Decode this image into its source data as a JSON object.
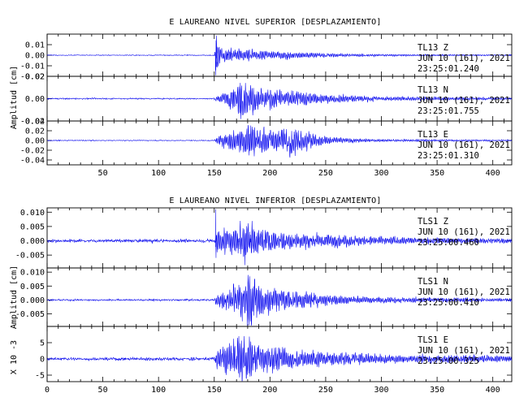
{
  "chart_data": [
    {
      "type": "line",
      "title": "E LAUREANO NIVEL SUPERIOR [DESPLAZAMIENTO]",
      "ylabel": "Amplitud [cm]",
      "xlim": [
        0,
        417
      ],
      "xticks": [
        50,
        100,
        150,
        200,
        250,
        300,
        350,
        400
      ],
      "xticks_labeled": true,
      "line_color": "#0000ee",
      "series": [
        {
          "name": "TL13 Z",
          "station": "TL13",
          "component": "Z",
          "date": "JUN 10 (161), 2021",
          "time": "23:25:01.240",
          "ylim": [
            -0.02,
            0.02
          ],
          "yticks": [
            0.01,
            0.0,
            -0.01,
            -0.02
          ],
          "ytick_labels": [
            "0.01",
            "0.00",
            "-0.01",
            "-0.02"
          ],
          "onset_s": 151,
          "envelope": [
            [
              0,
              0.0006
            ],
            [
              150,
              0.0007
            ],
            [
              151,
              0.018
            ],
            [
              156,
              0.007
            ],
            [
              175,
              0.0055
            ],
            [
              205,
              0.0042
            ],
            [
              230,
              0.003
            ],
            [
              260,
              0.0017
            ],
            [
              300,
              0.001
            ],
            [
              417,
              0.0006
            ]
          ],
          "spikes": [
            [
              151.2,
              -0.019
            ],
            [
              151.6,
              0.014
            ],
            [
              152.1,
              -0.011
            ],
            [
              152.8,
              0.008
            ]
          ]
        },
        {
          "name": "TL13 N",
          "station": "TL13",
          "component": "N",
          "date": "JUN 10 (161), 2021",
          "time": "23:25:01.755",
          "ylim": [
            -0.02,
            0.02
          ],
          "yticks": [
            0.02,
            0.0,
            -0.02
          ],
          "ytick_labels": [
            "0.02",
            "0.00",
            "-0.02"
          ],
          "onset_s": 151,
          "envelope": [
            [
              0,
              0.001
            ],
            [
              150,
              0.001
            ],
            [
              151,
              0.002
            ],
            [
              160,
              0.007
            ],
            [
              175,
              0.016
            ],
            [
              185,
              0.012
            ],
            [
              200,
              0.01
            ],
            [
              225,
              0.007
            ],
            [
              250,
              0.004
            ],
            [
              300,
              0.002
            ],
            [
              417,
              0.001
            ]
          ],
          "spikes": []
        },
        {
          "name": "TL13 E",
          "station": "TL13",
          "component": "E",
          "date": "JUN 10 (161), 2021",
          "time": "23:25:01.310",
          "ylim": [
            -0.05,
            0.04
          ],
          "yticks": [
            0.04,
            0.02,
            0.0,
            -0.02,
            -0.04
          ],
          "ytick_labels": [
            "0.04",
            "0.02",
            "0.00",
            "-0.02",
            "-0.04"
          ],
          "onset_s": 151,
          "envelope": [
            [
              0,
              0.0015
            ],
            [
              150,
              0.0015
            ],
            [
              151,
              0.006
            ],
            [
              165,
              0.02
            ],
            [
              180,
              0.038
            ],
            [
              195,
              0.028
            ],
            [
              205,
              0.02
            ],
            [
              218,
              0.036
            ],
            [
              235,
              0.018
            ],
            [
              255,
              0.007
            ],
            [
              290,
              0.003
            ],
            [
              417,
              0.0015
            ]
          ],
          "spikes": []
        }
      ]
    },
    {
      "type": "line",
      "title": "E LAUREANO NIVEL INFERIOR [DESPLAZAMIENTO]",
      "ylabel": "Amplitud [cm]",
      "xlim": [
        0,
        417
      ],
      "xticks": [
        0,
        50,
        100,
        150,
        200,
        250,
        300,
        350,
        400
      ],
      "xticks_labeled": true,
      "line_color": "#0000ee",
      "series": [
        {
          "name": "TLS1 Z",
          "station": "TLS1",
          "component": "Z",
          "date": "JUN 10 (161), 2021",
          "time": "23:25:00.460",
          "ylim": [
            -0.0095,
            0.0115
          ],
          "yticks": [
            0.01,
            0.005,
            0.0,
            -0.005
          ],
          "ytick_labels": [
            "0.010",
            "0.005",
            "0.000",
            "-0.005"
          ],
          "onset_s": 151,
          "envelope": [
            [
              0,
              0.0008
            ],
            [
              150,
              0.0009
            ],
            [
              151,
              0.004
            ],
            [
              165,
              0.005
            ],
            [
              178,
              0.0065
            ],
            [
              200,
              0.004
            ],
            [
              230,
              0.0028
            ],
            [
              270,
              0.0018
            ],
            [
              330,
              0.0012
            ],
            [
              417,
              0.0008
            ]
          ],
          "spikes": [
            [
              151.2,
              0.011
            ],
            [
              151.6,
              -0.006
            ],
            [
              177.5,
              -0.0085
            ]
          ]
        },
        {
          "name": "TLS1 N",
          "station": "TLS1",
          "component": "N",
          "date": "JUN 10 (161), 2021",
          "time": "23:25:00.410",
          "ylim": [
            -0.0095,
            0.0115
          ],
          "yticks": [
            0.01,
            0.005,
            0.0,
            -0.005
          ],
          "ytick_labels": [
            "0.010",
            "0.005",
            "0.000",
            "-0.005"
          ],
          "onset_s": 151,
          "envelope": [
            [
              0,
              0.0005
            ],
            [
              150,
              0.0006
            ],
            [
              151,
              0.002
            ],
            [
              160,
              0.004
            ],
            [
              172,
              0.0065
            ],
            [
              180,
              0.009
            ],
            [
              195,
              0.0055
            ],
            [
              215,
              0.004
            ],
            [
              240,
              0.0025
            ],
            [
              280,
              0.0012
            ],
            [
              417,
              0.0006
            ]
          ],
          "spikes": []
        },
        {
          "name": "TLS1 E",
          "station": "TLS1",
          "component": "E",
          "date": "JUN 10 (161), 2021",
          "time": "23:25:00.325",
          "scale_label": "X 10 -3",
          "ylim": [
            -7,
            10
          ],
          "yticks": [
            5,
            0,
            -5
          ],
          "ytick_labels": [
            "5",
            "0",
            "-5"
          ],
          "onset_s": 151,
          "envelope": [
            [
              0,
              0.7
            ],
            [
              150,
              0.8
            ],
            [
              151,
              2.5
            ],
            [
              160,
              4
            ],
            [
              175,
              7.5
            ],
            [
              185,
              6
            ],
            [
              200,
              4.2
            ],
            [
              225,
              3
            ],
            [
              260,
              2
            ],
            [
              320,
              1.3
            ],
            [
              417,
              1
            ]
          ],
          "spikes": []
        }
      ]
    }
  ]
}
